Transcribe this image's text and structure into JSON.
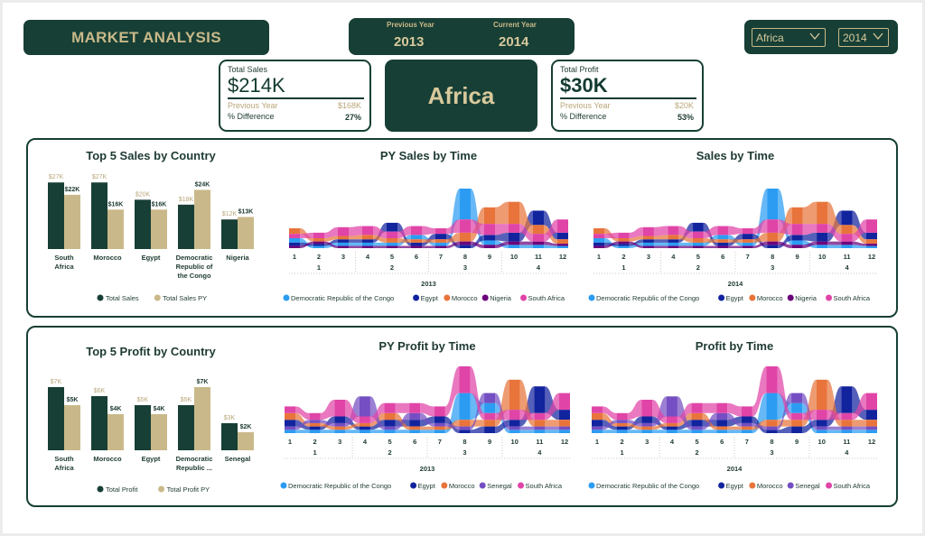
{
  "header": {
    "title": "MARKET ANALYSIS",
    "prev_year_label": "Previous Year",
    "curr_year_label": "Current Year",
    "prev_year": "2013",
    "curr_year": "2014",
    "region_filter": "Africa",
    "year_filter": "2014",
    "region_display": "Africa"
  },
  "kpi_sales": {
    "label": "Total Sales",
    "value": "$214K",
    "py_label": "Previous Year",
    "py_value": "$168K",
    "diff_label": "% Difference",
    "diff_value": "27%"
  },
  "kpi_profit": {
    "label": "Total Profit",
    "value": "$30K",
    "py_label": "Previous Year",
    "py_value": "$20K",
    "diff_label": "% Difference",
    "diff_value": "53%"
  },
  "colors": {
    "dark": "#173f35",
    "gold": "#c9b98a",
    "bar_current": "#173f35",
    "bar_py": "#c9b98a",
    "Democratic Republic of the Congo": "#2b9cf2",
    "Egypt": "#12239e",
    "Morocco": "#e8743b",
    "Nigeria": "#6b007b",
    "Senegal": "#744ec2",
    "South Africa": "#e044a7"
  },
  "chart_data": [
    {
      "type": "bar",
      "title": "Top 5 Sales by Country",
      "categories": [
        "South Africa",
        "Morocco",
        "Egypt",
        "Democratic Republic of the Congo",
        "Nigeria"
      ],
      "series": [
        {
          "name": "Total Sales",
          "values": [
            27,
            27,
            20,
            18,
            12
          ],
          "labels": [
            "",
            "",
            "",
            "",
            ""
          ]
        },
        {
          "name": "Total Sales PY",
          "values": [
            22,
            16,
            16,
            24,
            13
          ],
          "labels": [
            "$22K",
            "$16K",
            "$16K",
            "$24K",
            "$13K"
          ]
        }
      ],
      "current_labels": [
        "$27K",
        "$27K",
        "$20K",
        "$18K",
        "$12K"
      ],
      "ylim": [
        0,
        30
      ]
    },
    {
      "type": "area",
      "title": "PY Sales by Time",
      "year": "2013",
      "months": [
        "1",
        "2",
        "3",
        "4",
        "5",
        "6",
        "7",
        "8",
        "9",
        "10",
        "11",
        "12"
      ],
      "quarters": [
        "1",
        "2",
        "3",
        "4"
      ],
      "legend": [
        "Democratic Republic of the Congo",
        "Egypt",
        "Morocco",
        "Nigeria",
        "South Africa"
      ],
      "series": [
        {
          "name": "Democratic Republic of the Congo",
          "values": [
            4,
            2,
            3,
            3,
            3,
            4,
            3,
            28,
            4,
            3,
            3,
            2
          ]
        },
        {
          "name": "Egypt",
          "values": [
            3,
            2,
            3,
            3,
            8,
            3,
            5,
            3,
            5,
            8,
            13,
            6
          ]
        },
        {
          "name": "Morocco",
          "values": [
            5,
            3,
            3,
            4,
            4,
            3,
            3,
            8,
            15,
            20,
            8,
            4
          ]
        },
        {
          "name": "Nigeria",
          "values": [
            2,
            2,
            2,
            2,
            2,
            2,
            2,
            3,
            3,
            3,
            3,
            2
          ]
        },
        {
          "name": "South Africa",
          "values": [
            4,
            5,
            8,
            8,
            6,
            8,
            5,
            12,
            10,
            8,
            7,
            12
          ]
        }
      ]
    },
    {
      "type": "area",
      "title": "Sales by Time",
      "year": "2014",
      "months": [
        "1",
        "2",
        "3",
        "4",
        "5",
        "6",
        "7",
        "8",
        "9",
        "10",
        "11",
        "12"
      ],
      "quarters": [
        "1",
        "2",
        "3",
        "4"
      ],
      "legend": [
        "Democratic Republic of the Congo",
        "Egypt",
        "Morocco",
        "Nigeria",
        "South Africa"
      ],
      "series": [
        {
          "name": "Democratic Republic of the Congo",
          "values": [
            4,
            2,
            3,
            3,
            3,
            4,
            3,
            28,
            4,
            3,
            3,
            2
          ]
        },
        {
          "name": "Egypt",
          "values": [
            3,
            2,
            3,
            3,
            8,
            3,
            5,
            3,
            5,
            8,
            13,
            6
          ]
        },
        {
          "name": "Morocco",
          "values": [
            5,
            3,
            3,
            4,
            4,
            3,
            3,
            8,
            15,
            20,
            8,
            4
          ]
        },
        {
          "name": "Nigeria",
          "values": [
            2,
            2,
            2,
            2,
            2,
            2,
            2,
            3,
            3,
            3,
            3,
            2
          ]
        },
        {
          "name": "South Africa",
          "values": [
            4,
            5,
            8,
            8,
            6,
            8,
            5,
            12,
            10,
            8,
            7,
            12
          ]
        }
      ]
    },
    {
      "type": "bar",
      "title": "Top 5 Profit by Country",
      "categories": [
        "South Africa",
        "Morocco",
        "Egypt",
        "Democratic Republic ...",
        "Senegal"
      ],
      "series": [
        {
          "name": "Total Profit",
          "values": [
            7,
            6,
            5,
            5,
            3
          ]
        },
        {
          "name": "Total Profit PY",
          "values": [
            5,
            4,
            4,
            7,
            2
          ],
          "labels": [
            "$5K",
            "$4K",
            "$4K",
            "$7K",
            "$2K"
          ]
        }
      ],
      "current_labels": [
        "$7K",
        "$6K",
        "$5K",
        "$5K",
        "$3K"
      ],
      "ylim": [
        0,
        8
      ]
    },
    {
      "type": "area",
      "title": "PY Profit by Time",
      "year": "2013",
      "months": [
        "1",
        "2",
        "3",
        "4",
        "5",
        "6",
        "7",
        "8",
        "9",
        "10",
        "11",
        "12"
      ],
      "quarters": [
        "1",
        "2",
        "3",
        "4"
      ],
      "legend": [
        "Democratic Republic of the Congo",
        "Egypt",
        "Morocco",
        "Senegal",
        "South Africa"
      ],
      "series": [
        {
          "name": "Democratic Republic of the Congo",
          "values": [
            1,
            1,
            1,
            1,
            1,
            1,
            1,
            8,
            3,
            1,
            1,
            1
          ]
        },
        {
          "name": "Egypt",
          "values": [
            2,
            1,
            2,
            1,
            2,
            2,
            2,
            1,
            2,
            2,
            8,
            3
          ]
        },
        {
          "name": "Morocco",
          "values": [
            2,
            1,
            1,
            1,
            2,
            1,
            1,
            2,
            2,
            9,
            2,
            2
          ]
        },
        {
          "name": "Senegal",
          "values": [
            1,
            1,
            1,
            6,
            1,
            2,
            1,
            1,
            3,
            1,
            1,
            1
          ]
        },
        {
          "name": "South Africa",
          "values": [
            2,
            2,
            5,
            2,
            3,
            3,
            3,
            8,
            2,
            3,
            2,
            5
          ]
        }
      ]
    },
    {
      "type": "area",
      "title": "Profit by Time",
      "year": "2014",
      "months": [
        "1",
        "2",
        "3",
        "4",
        "5",
        "6",
        "7",
        "8",
        "9",
        "10",
        "11",
        "12"
      ],
      "quarters": [
        "1",
        "2",
        "3",
        "4"
      ],
      "legend": [
        "Democratic Republic of the Congo",
        "Egypt",
        "Morocco",
        "Senegal",
        "South Africa"
      ],
      "series": [
        {
          "name": "Democratic Republic of the Congo",
          "values": [
            1,
            1,
            1,
            1,
            1,
            1,
            1,
            8,
            3,
            1,
            1,
            1
          ]
        },
        {
          "name": "Egypt",
          "values": [
            2,
            1,
            2,
            1,
            2,
            2,
            2,
            1,
            2,
            2,
            8,
            3
          ]
        },
        {
          "name": "Morocco",
          "values": [
            2,
            1,
            1,
            1,
            2,
            1,
            1,
            2,
            2,
            9,
            2,
            2
          ]
        },
        {
          "name": "Senegal",
          "values": [
            1,
            1,
            1,
            6,
            1,
            2,
            1,
            1,
            3,
            1,
            1,
            1
          ]
        },
        {
          "name": "South Africa",
          "values": [
            2,
            2,
            5,
            2,
            3,
            3,
            3,
            8,
            2,
            3,
            2,
            5
          ]
        }
      ]
    }
  ]
}
